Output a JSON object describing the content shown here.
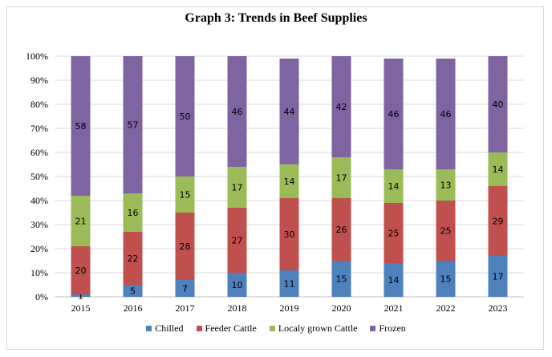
{
  "chart_data": {
    "type": "bar",
    "stacked": true,
    "percent": true,
    "title": "Graph 3: Trends in Beef Supplies",
    "xlabel": "",
    "ylabel": "",
    "ylim": [
      0,
      100
    ],
    "ytick_labels": [
      "0%",
      "10%",
      "20%",
      "30%",
      "40%",
      "50%",
      "60%",
      "70%",
      "80%",
      "90%",
      "100%"
    ],
    "categories": [
      "2015",
      "2016",
      "2017",
      "2018",
      "2019",
      "2020",
      "2021",
      "2022",
      "2023"
    ],
    "series": [
      {
        "name": "Chilled",
        "color": "#4f81bd",
        "values": [
          1,
          5,
          7,
          10,
          11,
          15,
          14,
          15,
          17
        ]
      },
      {
        "name": "Feeder Cattle",
        "color": "#c0504d",
        "values": [
          20,
          22,
          28,
          27,
          30,
          26,
          25,
          25,
          29
        ]
      },
      {
        "name": "Localy grown Cattle",
        "color": "#9bbb59",
        "values": [
          21,
          16,
          15,
          17,
          14,
          17,
          14,
          13,
          14
        ]
      },
      {
        "name": "Frozen",
        "color": "#8064a2",
        "values": [
          58,
          57,
          50,
          46,
          44,
          42,
          46,
          46,
          40
        ]
      }
    ],
    "grid": true,
    "legend_position": "bottom"
  }
}
